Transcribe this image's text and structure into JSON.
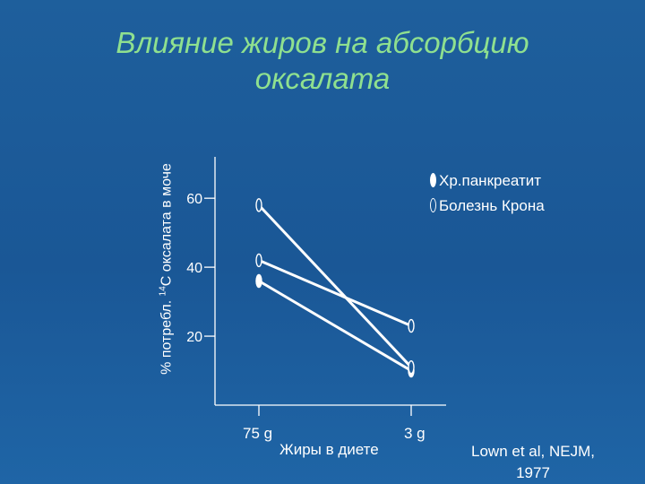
{
  "title_lines": [
    "Влияние жиров на абсорбцию",
    "оксалата"
  ],
  "colors": {
    "background": "#1c5a98",
    "title": "#8fe08f",
    "foreground": "#ffffff"
  },
  "chart_data": {
    "type": "line",
    "title": "Влияние жиров на абсорбцию оксалата",
    "ylabel_parts": [
      "% потребл. ",
      "14",
      "С оксалата в моче"
    ],
    "xlabel": "Жиры в диете",
    "categories": [
      "75 g",
      "3 g"
    ],
    "y_ticks": [
      "20",
      "40",
      "60"
    ],
    "ylim": [
      0,
      72
    ],
    "series": [
      {
        "name": "Хр.панкреатит",
        "marker": "filled",
        "values": [
          36,
          10
        ]
      },
      {
        "name": "Болезнь Крона",
        "marker": "open",
        "values": [
          58,
          11
        ]
      },
      {
        "name": "Болезнь Крона",
        "marker": "open",
        "values": [
          42,
          23
        ]
      }
    ],
    "legend": [
      {
        "label": "Хр.панкреатит",
        "marker": "filled"
      },
      {
        "label": "Болезнь Крона",
        "marker": "open"
      }
    ],
    "legend_position": "top-right",
    "grid": false
  },
  "citation_lines": [
    "Lown et al, NEJM,",
    "1977"
  ]
}
